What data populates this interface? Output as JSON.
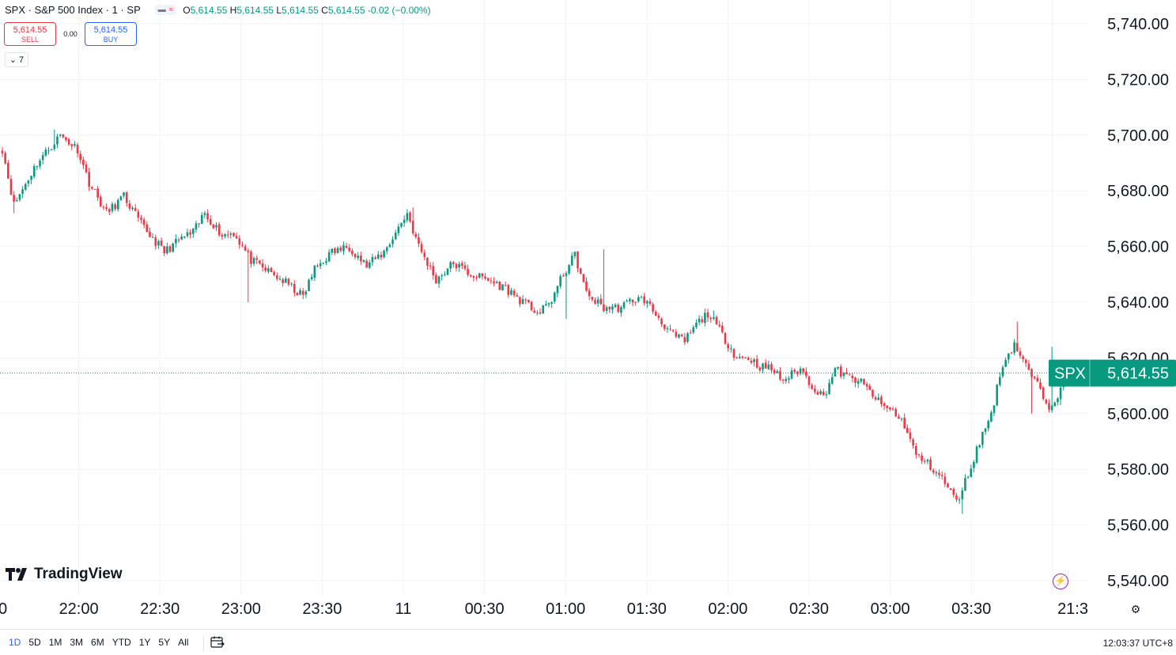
{
  "legend": {
    "symbol": "SPX · S&P 500 Index · 1 · SP",
    "open_label": "O",
    "open": "5,614.55",
    "high_label": "H",
    "high": "5,614.55",
    "low_label": "L",
    "low": "5,614.55",
    "close_label": "C",
    "close": "5,614.55",
    "change": "-0.02 (−0.00%)"
  },
  "trade": {
    "sell_price": "5,614.55",
    "sell_label": "SELL",
    "spread": "0.00",
    "buy_price": "5,614.55",
    "buy_label": "BUY"
  },
  "indicators_count": "7",
  "brand": "TradingView",
  "ranges": [
    "1D",
    "5D",
    "1M",
    "3M",
    "6M",
    "YTD",
    "1Y",
    "5Y",
    "All"
  ],
  "active_range": "1D",
  "clock": "12:03:37 UTC+8",
  "colors": {
    "up": "#089981",
    "down": "#f23645",
    "last_price": "#089981",
    "grid": "#f0f3fa"
  },
  "icons": [
    "collapse-chevron-icon",
    "tradingview-logo-icon",
    "lightning-icon",
    "calendar-goto-icon",
    "settings-icon"
  ],
  "chart_data": {
    "type": "candlestick",
    "series_name": "SPX",
    "last_price": 5614.55,
    "last_price_label": "5,614.55",
    "ylim": [
      5535,
      5745
    ],
    "y_ticks": [
      "5,540.00",
      "5,560.00",
      "5,580.00",
      "5,600.00",
      "5,620.00",
      "5,640.00",
      "5,660.00",
      "5,680.00",
      "5,700.00",
      "5,720.00",
      "5,740.00"
    ],
    "x_ticks": [
      "0",
      "22:00",
      "22:30",
      "23:00",
      "23:30",
      "11",
      "00:30",
      "01:00",
      "01:30",
      "02:00",
      "02:30",
      "03:00",
      "03:30",
      "21:3"
    ],
    "grid": true,
    "close_path": [
      [
        0,
        5695
      ],
      [
        4,
        5675
      ],
      [
        12,
        5690
      ],
      [
        20,
        5700
      ],
      [
        26,
        5695
      ],
      [
        30,
        5683
      ],
      [
        36,
        5672
      ],
      [
        42,
        5678
      ],
      [
        48,
        5668
      ],
      [
        56,
        5658
      ],
      [
        62,
        5663
      ],
      [
        66,
        5665
      ],
      [
        70,
        5672
      ],
      [
        76,
        5664
      ],
      [
        80,
        5665
      ],
      [
        86,
        5655
      ],
      [
        92,
        5651
      ],
      [
        98,
        5647
      ],
      [
        104,
        5642
      ],
      [
        108,
        5652
      ],
      [
        114,
        5658
      ],
      [
        120,
        5660
      ],
      [
        126,
        5653
      ],
      [
        132,
        5658
      ],
      [
        140,
        5672
      ],
      [
        144,
        5660
      ],
      [
        150,
        5648
      ],
      [
        156,
        5654
      ],
      [
        162,
        5650
      ],
      [
        168,
        5648
      ],
      [
        174,
        5645
      ],
      [
        180,
        5640
      ],
      [
        186,
        5636
      ],
      [
        190,
        5641
      ],
      [
        194,
        5650
      ],
      [
        198,
        5657
      ],
      [
        202,
        5643
      ],
      [
        208,
        5638
      ],
      [
        214,
        5638
      ],
      [
        218,
        5641
      ],
      [
        222,
        5641
      ],
      [
        228,
        5633
      ],
      [
        232,
        5628
      ],
      [
        236,
        5626
      ],
      [
        240,
        5632
      ],
      [
        244,
        5636
      ],
      [
        248,
        5630
      ],
      [
        254,
        5620
      ],
      [
        258,
        5620
      ],
      [
        262,
        5617
      ],
      [
        266,
        5616
      ],
      [
        270,
        5612
      ],
      [
        276,
        5616
      ],
      [
        280,
        5610
      ],
      [
        284,
        5606
      ],
      [
        288,
        5616
      ],
      [
        292,
        5613
      ],
      [
        296,
        5612
      ],
      [
        300,
        5608
      ],
      [
        304,
        5603
      ],
      [
        308,
        5601
      ],
      [
        312,
        5596
      ],
      [
        316,
        5585
      ],
      [
        320,
        5582
      ],
      [
        324,
        5578
      ],
      [
        328,
        5572
      ],
      [
        330,
        5568
      ],
      [
        334,
        5578
      ],
      [
        338,
        5590
      ],
      [
        342,
        5600
      ],
      [
        346,
        5618
      ],
      [
        350,
        5625
      ],
      [
        354,
        5617
      ],
      [
        358,
        5610
      ],
      [
        362,
        5603
      ],
      [
        366,
        5608
      ],
      [
        370,
        5616
      ],
      [
        374,
        5614
      ]
    ],
    "high_points": [
      [
        18,
        5702
      ],
      [
        142,
        5674
      ],
      [
        208,
        5659
      ],
      [
        246,
        5637
      ],
      [
        351,
        5633
      ],
      [
        363,
        5624
      ]
    ],
    "low_points": [
      [
        4,
        5672
      ],
      [
        85,
        5640
      ],
      [
        195,
        5634
      ],
      [
        254,
        5620
      ],
      [
        332,
        5564
      ],
      [
        356,
        5600
      ],
      [
        366,
        5603
      ]
    ]
  }
}
